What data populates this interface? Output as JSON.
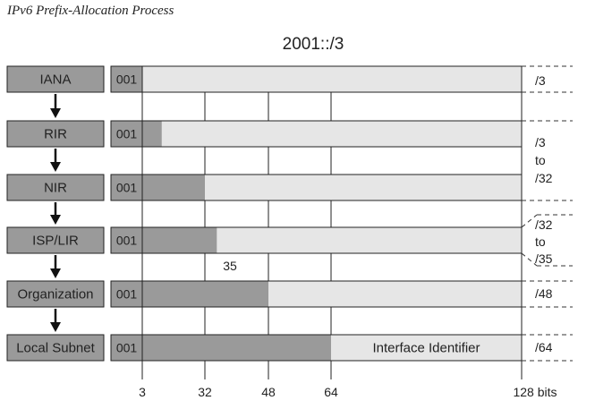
{
  "figure": {
    "title": "IPv6 Prefix-Allocation Process",
    "prefix_heading": "2001::/3",
    "fixed_bits_label": "001",
    "interface_identifier_label": "Interface Identifier",
    "axis_ticks": [
      "3",
      "32",
      "48",
      "64",
      "128 bits"
    ],
    "isp_marker_label": "35"
  },
  "levels": [
    {
      "name": "IANA",
      "prefix_bits": 3,
      "side_label": "/3"
    },
    {
      "name": "RIR",
      "prefix_bits": 12,
      "side_label": ""
    },
    {
      "name": "NIR",
      "prefix_bits": 32,
      "side_label": ""
    },
    {
      "name": "ISP/LIR",
      "prefix_bits": 35,
      "side_label": ""
    },
    {
      "name": "Organization",
      "prefix_bits": 48,
      "side_label": "/48"
    },
    {
      "name": "Local Subnet",
      "prefix_bits": 64,
      "side_label": "/64"
    }
  ],
  "range_labels": {
    "rir_nir": [
      "/3",
      "to",
      "/32"
    ],
    "isp_lir": [
      "/32",
      "to",
      "/35"
    ]
  },
  "colors": {
    "dark_fill": "#9a9a9a",
    "light_fill": "#e6e6e6",
    "name_box_fill": "#9a9a9a",
    "line": "#222222"
  }
}
